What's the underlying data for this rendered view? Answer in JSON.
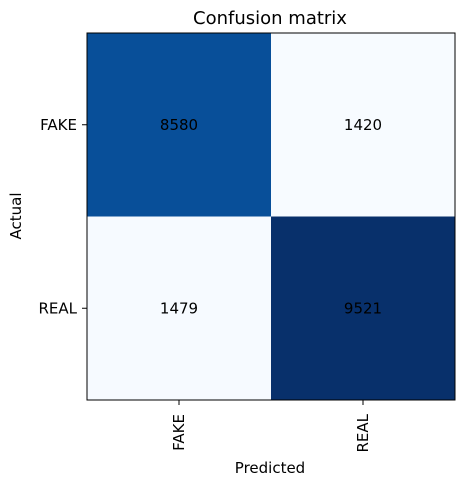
{
  "chart_data": {
    "type": "heatmap",
    "title": "Confusion matrix",
    "xlabel": "Predicted",
    "ylabel": "Actual",
    "x_categories": [
      "FAKE",
      "REAL"
    ],
    "y_categories": [
      "FAKE",
      "REAL"
    ],
    "values": [
      [
        8580,
        1420
      ],
      [
        1479,
        9521
      ]
    ],
    "colormap": "Blues",
    "color_scale": {
      "low": "#f7fbff",
      "high": "#08306b"
    },
    "annotation_colors": {
      "light": "#ffffff",
      "dark": "#000000"
    }
  }
}
